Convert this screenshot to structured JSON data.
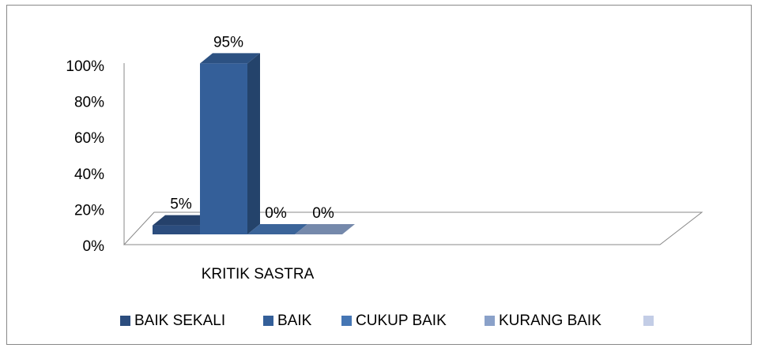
{
  "chart_data": {
    "type": "bar3d",
    "categories": [
      "KRITIK SASTRA"
    ],
    "series": [
      {
        "name": "BAIK SEKALI",
        "color": "#2c4d7e",
        "values": [
          5
        ],
        "value_labels": [
          "5%"
        ]
      },
      {
        "name": "BAIK",
        "color": "#345f99",
        "values": [
          95
        ],
        "value_labels": [
          "95%"
        ]
      },
      {
        "name": "CUKUP BAIK",
        "color": "#4576b4",
        "values": [
          0
        ],
        "value_labels": [
          "0%"
        ]
      },
      {
        "name": "KURANG BAIK",
        "color": "#8aa1c9",
        "values": [
          0
        ],
        "value_labels": [
          "0%"
        ]
      },
      {
        "name": null,
        "color": "#c3cde6",
        "values": [
          null
        ]
      }
    ],
    "ylim": [
      0,
      100
    ],
    "yticks": [
      {
        "value": 0,
        "label": "0%"
      },
      {
        "value": 20,
        "label": "20%"
      },
      {
        "value": 40,
        "label": "40%"
      },
      {
        "value": 60,
        "label": "60%"
      },
      {
        "value": 80,
        "label": "80%"
      },
      {
        "value": 100,
        "label": "100%"
      }
    ],
    "legend": "bottom"
  }
}
